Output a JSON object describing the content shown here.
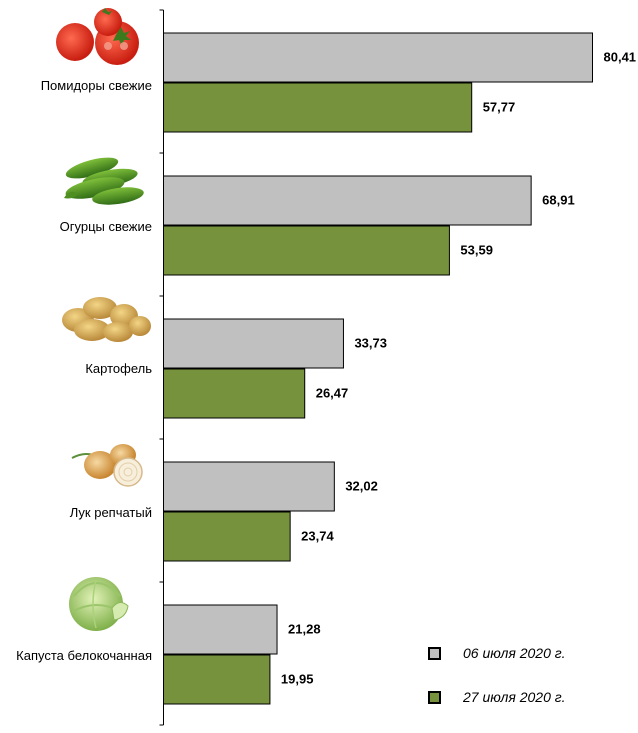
{
  "chart_data": {
    "type": "bar",
    "orientation": "horizontal",
    "categories": [
      "Помидоры свежие",
      "Огурцы свежие",
      "Картофель",
      "Лук репчатый",
      "Капуста белокочанная"
    ],
    "category_icons": [
      "tomato-icon",
      "cucumber-icon",
      "potato-icon",
      "onion-icon",
      "cabbage-icon"
    ],
    "series": [
      {
        "name": "06 июля 2020 г.",
        "color": "#c0c0c0",
        "values": [
          80.41,
          68.91,
          33.73,
          32.02,
          21.28
        ],
        "labels": [
          "80,41",
          "68,91",
          "33,73",
          "32,02",
          "21,28"
        ]
      },
      {
        "name": "27 июля 2020 г.",
        "color": "#76923c",
        "values": [
          57.77,
          53.59,
          26.47,
          23.74,
          19.95
        ],
        "labels": [
          "57,77",
          "53,59",
          "26,47",
          "23,74",
          "19,95"
        ]
      }
    ],
    "xlim": [
      0,
      80.41
    ],
    "legend_position": "bottom-right",
    "grid": false
  }
}
